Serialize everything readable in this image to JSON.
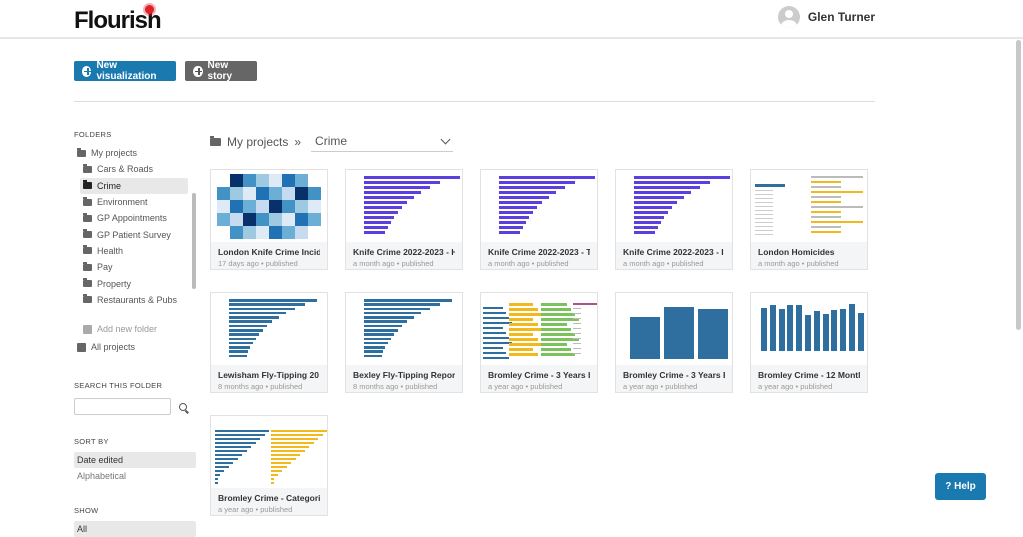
{
  "app": {
    "logo": "Flourish",
    "user_name": "Glen Turner"
  },
  "toolbar": {
    "new_visualization": "New visualization",
    "new_story": "New story"
  },
  "sidebar": {
    "folders_label": "FOLDERS",
    "root": "My projects",
    "folders": [
      {
        "label": "Cars & Roads"
      },
      {
        "label": "Crime",
        "selected": true
      },
      {
        "label": "Environment"
      },
      {
        "label": "GP Appointments"
      },
      {
        "label": "GP Patient Survey"
      },
      {
        "label": "Health"
      },
      {
        "label": "Pay"
      },
      {
        "label": "Property"
      },
      {
        "label": "Restaurants & Pubs"
      }
    ],
    "add_folder": "Add new folder",
    "all_projects": "All projects",
    "search_label": "SEARCH THIS FOLDER",
    "search_value": "",
    "sort_label": "SORT BY",
    "sort_options": [
      "Date edited",
      "Alphabetical"
    ],
    "sort_selected": "Date edited",
    "show_label": "SHOW",
    "show_selected": "All"
  },
  "breadcrumb": {
    "root": "My projects",
    "separator": "»",
    "current": "Crime"
  },
  "projects": [
    {
      "title": "London Knife Crime Incid",
      "meta": "17 days ago • published",
      "thumb": "map"
    },
    {
      "title": "Knife Crime 2022-2023 - H",
      "meta": "a month ago • published",
      "thumb": "hbar-purple"
    },
    {
      "title": "Knife Crime 2022-2023 - T",
      "meta": "a month ago • published",
      "thumb": "hbar-purple"
    },
    {
      "title": "Knife Crime 2022-2023 - I",
      "meta": "a month ago • published",
      "thumb": "hbar-purple"
    },
    {
      "title": "London Homicides",
      "meta": "a month ago • published",
      "thumb": "table"
    },
    {
      "title": "Lewisham Fly-Tipping 20",
      "meta": "8 months ago • published",
      "thumb": "hbar-blue"
    },
    {
      "title": "Bexley Fly-Tipping Repor",
      "meta": "8 months ago • published",
      "thumb": "hbar-blue"
    },
    {
      "title": "Bromley Crime - 3 Years b",
      "meta": "a year ago • published",
      "thumb": "multi"
    },
    {
      "title": "Bromley Crime - 3 Years B",
      "meta": "a year ago • published",
      "thumb": "vbar3"
    },
    {
      "title": "Bromley Crime - 12 Montl",
      "meta": "a year ago • published",
      "thumb": "vbar12"
    },
    {
      "title": "Bromley Crime - Categori",
      "meta": "a year ago • published",
      "thumb": "two-col"
    }
  ],
  "help": "? Help",
  "colors": {
    "accent": "#1a7ab0",
    "chart_blue": "#2f6f9f",
    "purple": "#5b3fe0",
    "yellow": "#f2b81c",
    "green": "#7cc25c"
  }
}
